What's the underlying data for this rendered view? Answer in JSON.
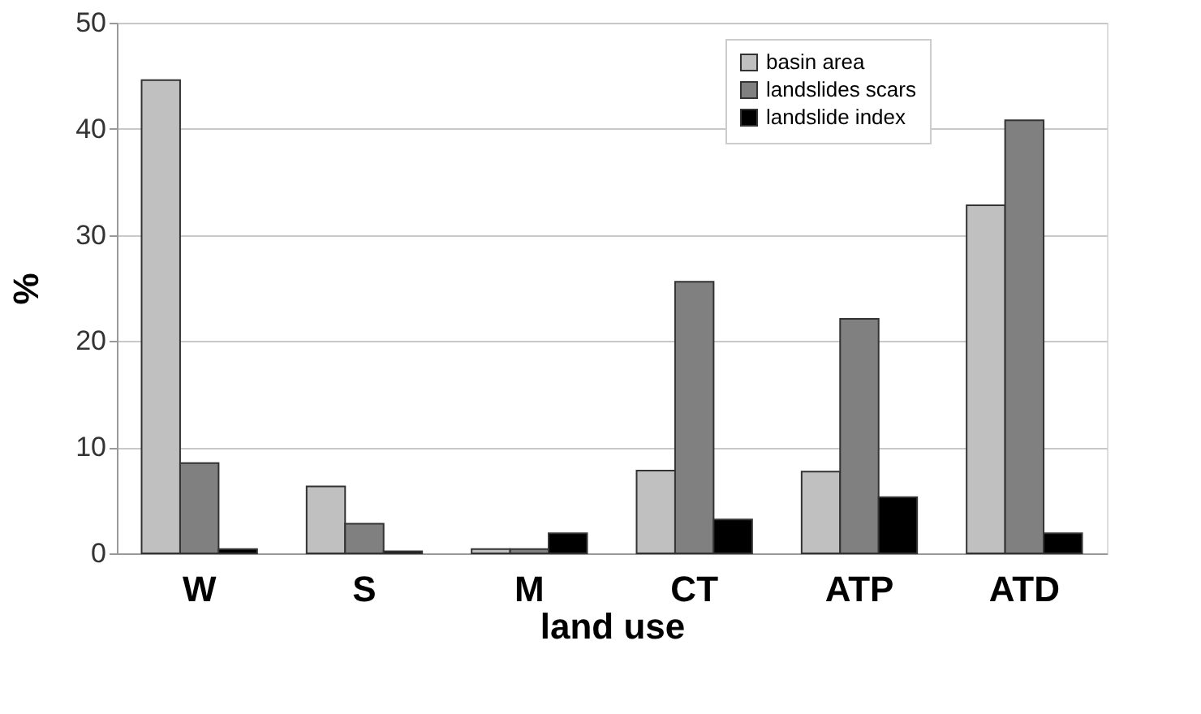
{
  "chart_data": {
    "type": "bar",
    "xlabel": "land use",
    "ylabel": "%",
    "categories": [
      "W",
      "S",
      "M",
      "CT",
      "ATP",
      "ATD"
    ],
    "series": [
      {
        "name": "basin area",
        "color": "#c0c0c0",
        "values": [
          44.6,
          6.3,
          0.4,
          7.8,
          7.7,
          32.8
        ]
      },
      {
        "name": "landslides scars",
        "color": "#808080",
        "values": [
          8.5,
          2.8,
          0.4,
          25.6,
          22.1,
          40.8
        ]
      },
      {
        "name": "landslide index",
        "color": "#000000",
        "values": [
          0.4,
          0.2,
          1.9,
          3.2,
          5.3,
          1.9
        ]
      }
    ],
    "ylim": [
      0,
      50
    ],
    "yticks": [
      0,
      10,
      20,
      30,
      40,
      50
    ],
    "grid": "y",
    "legend": "top right"
  }
}
